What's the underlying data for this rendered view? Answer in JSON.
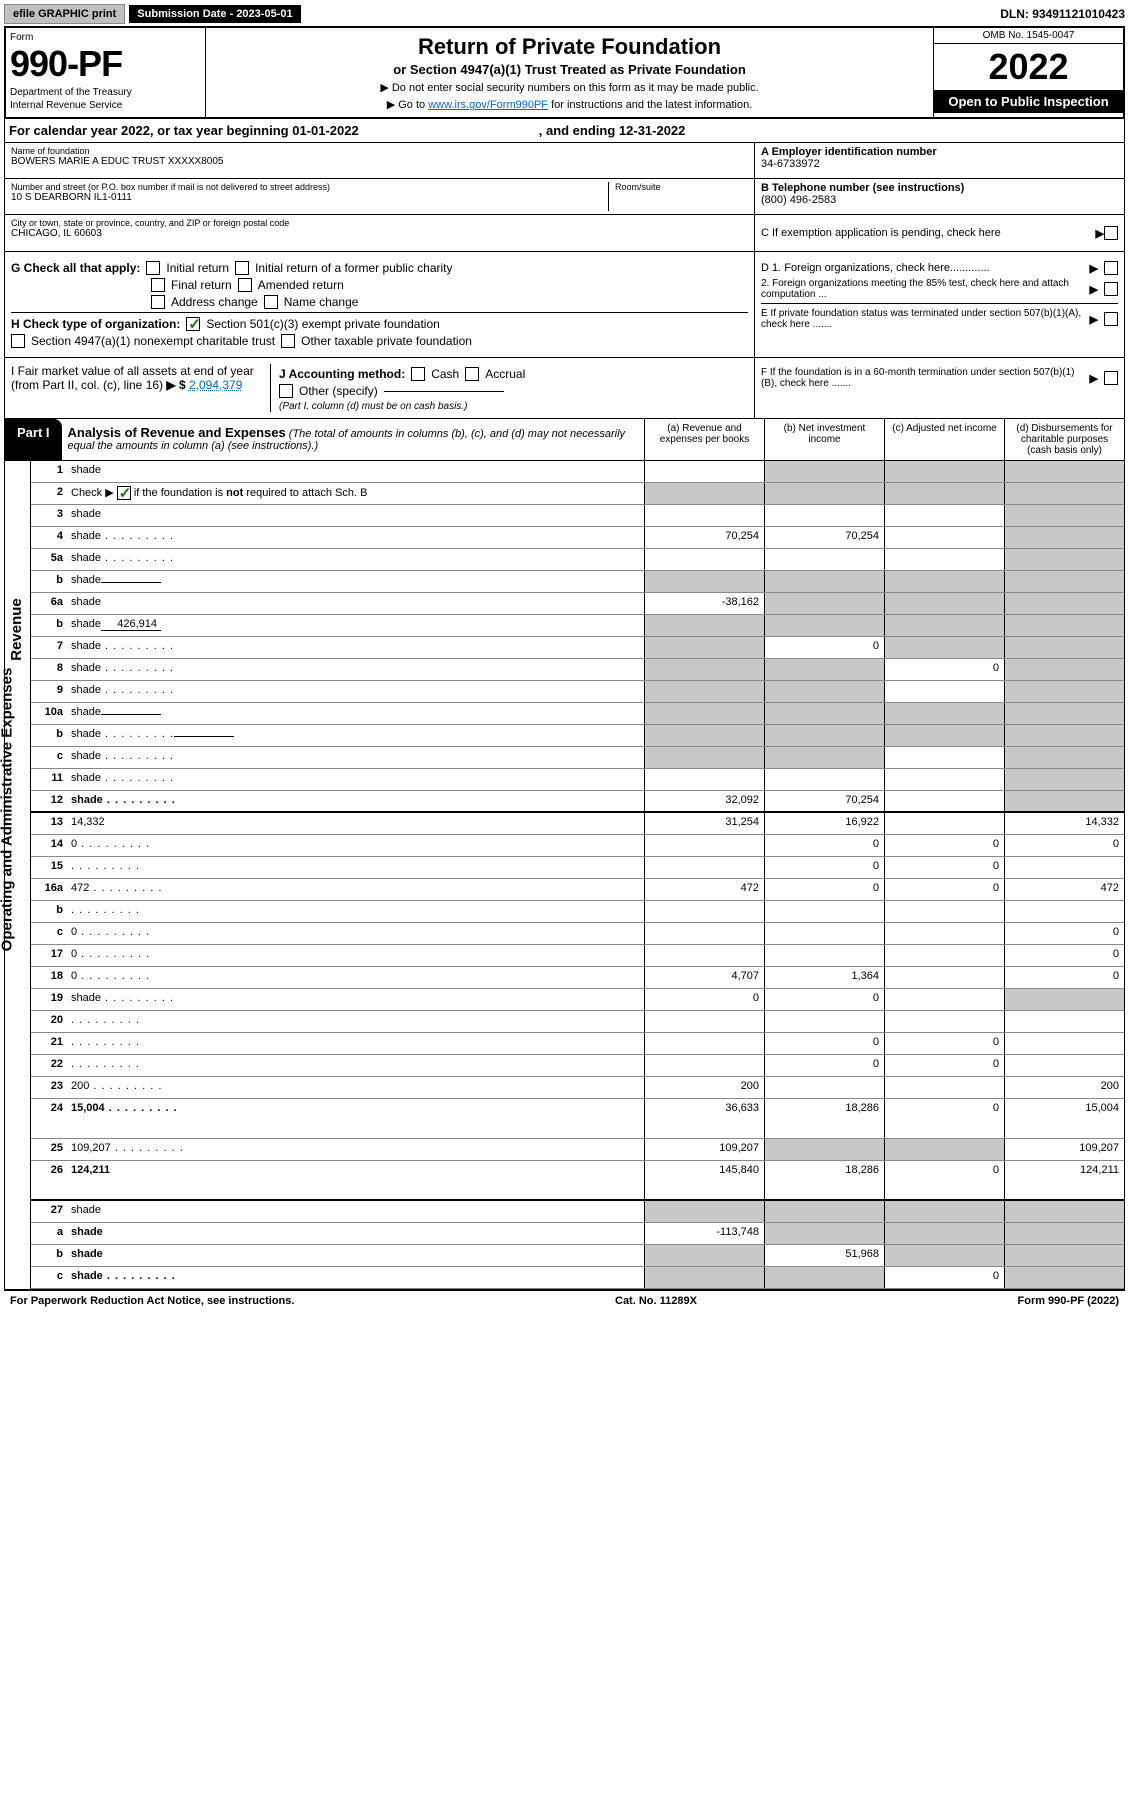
{
  "topbar": {
    "efile": "efile GRAPHIC print",
    "submission": "Submission Date - 2023-05-01",
    "dln": "DLN: 93491121010423"
  },
  "header": {
    "form_label": "Form",
    "form_number": "990-PF",
    "dept1": "Department of the Treasury",
    "dept2": "Internal Revenue Service",
    "title": "Return of Private Foundation",
    "subtitle": "or Section 4947(a)(1) Trust Treated as Private Foundation",
    "note1": "▶ Do not enter social security numbers on this form as it may be made public.",
    "note2_pre": "▶ Go to ",
    "note2_link": "www.irs.gov/Form990PF",
    "note2_post": " for instructions and the latest information.",
    "omb": "OMB No. 1545-0047",
    "year": "2022",
    "open_pub": "Open to Public Inspection"
  },
  "cal_year": {
    "a": "For calendar year 2022, or tax year beginning 01-01-2022",
    "b": ", and ending 12-31-2022"
  },
  "info_left": {
    "name_lbl": "Name of foundation",
    "name": "BOWERS MARIE A EDUC TRUST XXXXX8005",
    "addr_lbl": "Number and street (or P.O. box number if mail is not delivered to street address)",
    "addr": "10 S DEARBORN IL1-0111",
    "room_lbl": "Room/suite",
    "city_lbl": "City or town, state or province, country, and ZIP or foreign postal code",
    "city": "CHICAGO, IL  60603"
  },
  "info_right": {
    "A_lbl": "A Employer identification number",
    "A_val": "34-6733972",
    "B_lbl": "B Telephone number (see instructions)",
    "B_val": "(800) 496-2583",
    "C_lbl": "C If exemption application is pending, check here",
    "D1": "D 1. Foreign organizations, check here.............",
    "D2": "2. Foreign organizations meeting the 85% test, check here and attach computation ...",
    "E": "E  If private foundation status was terminated under section 507(b)(1)(A), check here .......",
    "F": "F  If the foundation is in a 60-month termination under section 507(b)(1)(B), check here ......."
  },
  "G": {
    "label": "G Check all that apply:",
    "opts": [
      "Initial return",
      "Initial return of a former public charity",
      "Final return",
      "Amended return",
      "Address change",
      "Name change"
    ]
  },
  "H": {
    "label": "H Check type of organization:",
    "opt1": "Section 501(c)(3) exempt private foundation",
    "opt2": "Section 4947(a)(1) nonexempt charitable trust",
    "opt3": "Other taxable private foundation"
  },
  "I": {
    "label": "I Fair market value of all assets at end of year (from Part II, col. (c), line 16)",
    "arrow": "▶ $",
    "val": "2,094,379"
  },
  "J": {
    "label": "J Accounting method:",
    "cash": "Cash",
    "accrual": "Accrual",
    "other": "Other (specify)",
    "note": "(Part I, column (d) must be on cash basis.)"
  },
  "part1": {
    "tab": "Part I",
    "title": "Analysis of Revenue and Expenses",
    "note": " (The total of amounts in columns (b), (c), and (d) may not necessarily equal the amounts in column (a) (see instructions).)",
    "col_a": "(a)   Revenue and expenses per books",
    "col_b": "(b)   Net investment income",
    "col_c": "(c)   Adjusted net income",
    "col_d": "(d)   Disbursements for charitable purposes (cash basis only)"
  },
  "rows": [
    {
      "n": "1",
      "d": "shade",
      "a": "",
      "b": "shade",
      "c": "shade"
    },
    {
      "n": "2",
      "d": "shade",
      "dots": true,
      "a": "shade",
      "b": "shade",
      "c": "shade",
      "check": true
    },
    {
      "n": "3",
      "d": "shade",
      "a": "",
      "b": "",
      "c": ""
    },
    {
      "n": "4",
      "d": "shade",
      "dots": true,
      "a": "70,254",
      "b": "70,254",
      "c": ""
    },
    {
      "n": "5a",
      "d": "shade",
      "dots": true,
      "a": "",
      "b": "",
      "c": ""
    },
    {
      "n": "b",
      "d": "shade",
      "inline": "",
      "a": "shade",
      "b": "shade",
      "c": "shade"
    },
    {
      "n": "6a",
      "d": "shade",
      "a": "-38,162",
      "b": "shade",
      "c": "shade"
    },
    {
      "n": "b",
      "d": "shade",
      "inline": "426,914",
      "a": "shade",
      "b": "shade",
      "c": "shade"
    },
    {
      "n": "7",
      "d": "shade",
      "dots": true,
      "a": "shade",
      "b": "0",
      "c": "shade"
    },
    {
      "n": "8",
      "d": "shade",
      "dots": true,
      "a": "shade",
      "b": "shade",
      "c": "0"
    },
    {
      "n": "9",
      "d": "shade",
      "dots": true,
      "a": "shade",
      "b": "shade",
      "c": ""
    },
    {
      "n": "10a",
      "d": "shade",
      "inline": "",
      "a": "shade",
      "b": "shade",
      "c": "shade"
    },
    {
      "n": "b",
      "d": "shade",
      "dots": true,
      "inline": "",
      "a": "shade",
      "b": "shade",
      "c": "shade"
    },
    {
      "n": "c",
      "d": "shade",
      "dots": true,
      "a": "shade",
      "b": "shade",
      "c": ""
    },
    {
      "n": "11",
      "d": "shade",
      "dots": true,
      "a": "",
      "b": "",
      "c": ""
    },
    {
      "n": "12",
      "d": "shade",
      "dots": true,
      "bold": true,
      "a": "32,092",
      "b": "70,254",
      "c": ""
    },
    {
      "n": "13",
      "d": "14,332",
      "a": "31,254",
      "b": "16,922",
      "c": ""
    },
    {
      "n": "14",
      "d": "0",
      "dots": true,
      "a": "",
      "b": "0",
      "c": "0"
    },
    {
      "n": "15",
      "d": "",
      "dots": true,
      "a": "",
      "b": "0",
      "c": "0"
    },
    {
      "n": "16a",
      "d": "472",
      "dots": true,
      "a": "472",
      "b": "0",
      "c": "0"
    },
    {
      "n": "b",
      "d": "",
      "dots": true,
      "a": "",
      "b": "",
      "c": ""
    },
    {
      "n": "c",
      "d": "0",
      "dots": true,
      "a": "",
      "b": "",
      "c": ""
    },
    {
      "n": "17",
      "d": "0",
      "dots": true,
      "a": "",
      "b": "",
      "c": ""
    },
    {
      "n": "18",
      "d": "0",
      "dots": true,
      "a": "4,707",
      "b": "1,364",
      "c": ""
    },
    {
      "n": "19",
      "d": "shade",
      "dots": true,
      "a": "0",
      "b": "0",
      "c": ""
    },
    {
      "n": "20",
      "d": "",
      "dots": true,
      "a": "",
      "b": "",
      "c": ""
    },
    {
      "n": "21",
      "d": "",
      "dots": true,
      "a": "",
      "b": "0",
      "c": "0"
    },
    {
      "n": "22",
      "d": "",
      "dots": true,
      "a": "",
      "b": "0",
      "c": "0"
    },
    {
      "n": "23",
      "d": "200",
      "dots": true,
      "a": "200",
      "b": "",
      "c": ""
    },
    {
      "n": "24",
      "d": "15,004",
      "dots": true,
      "bold": true,
      "a": "36,633",
      "b": "18,286",
      "c": "0",
      "tall": true
    },
    {
      "n": "25",
      "d": "109,207",
      "dots": true,
      "a": "109,207",
      "b": "shade",
      "c": "shade"
    },
    {
      "n": "26",
      "d": "124,211",
      "bold": true,
      "a": "145,840",
      "b": "18,286",
      "c": "0",
      "tall": true
    },
    {
      "n": "27",
      "d": "shade",
      "a": "shade",
      "b": "shade",
      "c": "shade"
    },
    {
      "n": "a",
      "d": "shade",
      "bold": true,
      "a": "-113,748",
      "b": "shade",
      "c": "shade"
    },
    {
      "n": "b",
      "d": "shade",
      "bold": true,
      "a": "shade",
      "b": "51,968",
      "c": "shade"
    },
    {
      "n": "c",
      "d": "shade",
      "dots": true,
      "bold": true,
      "a": "shade",
      "b": "shade",
      "c": "0"
    }
  ],
  "side": {
    "revenue": "Revenue",
    "expenses": "Operating and Administrative Expenses"
  },
  "footer": {
    "a": "For Paperwork Reduction Act Notice, see instructions.",
    "b": "Cat. No. 11289X",
    "c": "Form 990-PF (2022)"
  }
}
